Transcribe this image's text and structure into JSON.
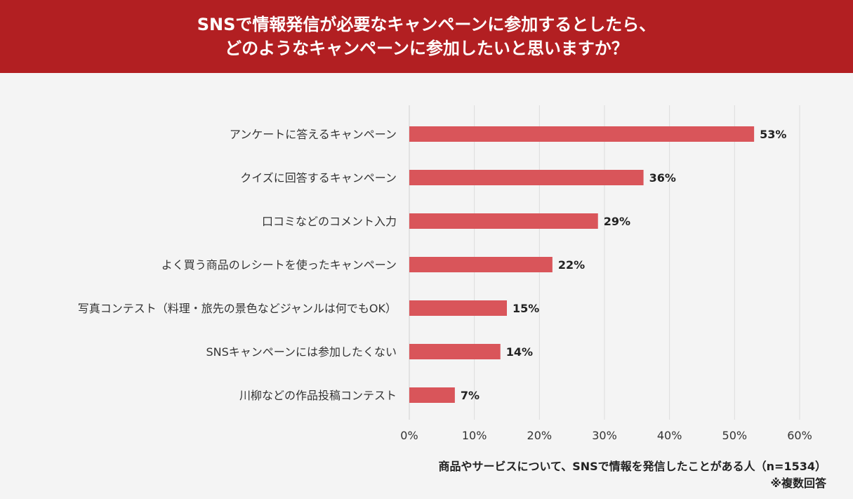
{
  "header": {
    "title_line1": "SNSで情報発信が必要なキャンペーンに参加するとしたら、",
    "title_line2": "どのようなキャンペーンに参加したいと思いますか？"
  },
  "chart_data": {
    "type": "bar",
    "orientation": "horizontal",
    "categories": [
      "アンケートに答えるキャンペーン",
      "クイズに回答するキャンペーン",
      "口コミなどのコメント入力",
      "よく買う商品のレシートを使ったキャンペーン",
      "写真コンテスト（料理・旅先の景色などジャンルは何でもOK）",
      "SNSキャンペーンには参加したくない",
      "川柳などの作品投稿コンテスト"
    ],
    "values": [
      53,
      36,
      29,
      22,
      15,
      14,
      7
    ],
    "value_labels": [
      "53%",
      "36%",
      "29%",
      "22%",
      "15%",
      "14%",
      "7%"
    ],
    "xlim": [
      0,
      60
    ],
    "x_ticks": [
      0,
      10,
      20,
      30,
      40,
      50,
      60
    ],
    "x_tick_labels": [
      "0%",
      "10%",
      "20%",
      "30%",
      "40%",
      "50%",
      "60%"
    ],
    "grid": true,
    "bar_color": "#d9555a",
    "xlabel": "商品やサービスについて、SNSで情報を発信したことがある人（n=1534）",
    "note": "※複数回答"
  },
  "colors": {
    "header_bg": "#b21f22",
    "plot_bg": "#f4f4f4",
    "bar": "#d9555a",
    "grid": "#dcdcdc"
  }
}
